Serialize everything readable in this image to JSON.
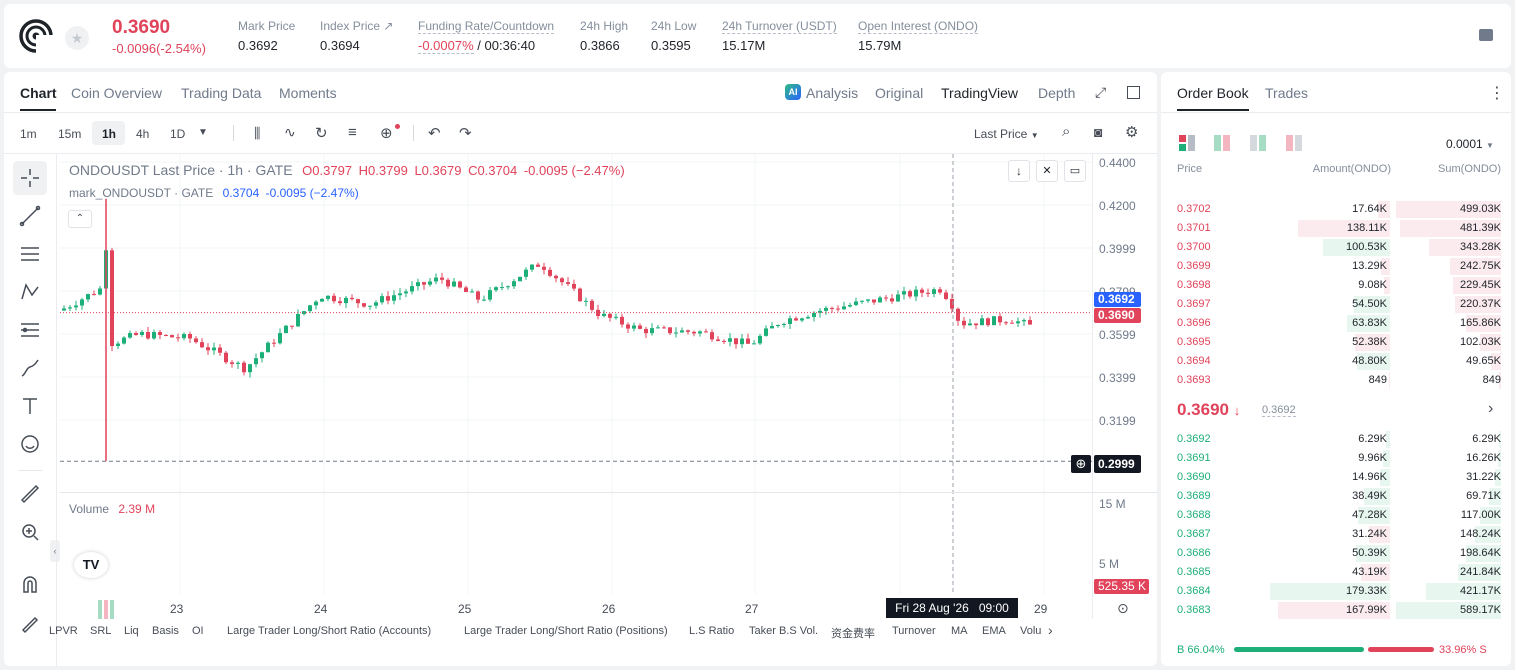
{
  "header": {
    "price": "0.3690",
    "change": "-0.0096(-2.54%)",
    "stats": [
      {
        "label": "Mark Price",
        "value": "0.3692"
      },
      {
        "label": "Index Price ↗",
        "value": "0.3694"
      },
      {
        "label": "Funding Rate/Countdown",
        "value_rate": "-0.0007%",
        "value_cd": "/ 00:36:40"
      },
      {
        "label": "24h High",
        "value": "0.3866"
      },
      {
        "label": "24h Low",
        "value": "0.3595"
      },
      {
        "label": "24h Turnover (USDT)",
        "value": "15.17M"
      },
      {
        "label": "Open Interest (ONDO)",
        "value": "15.79M"
      }
    ]
  },
  "chart_tabs": [
    "Chart",
    "Coin Overview",
    "Trading Data",
    "Moments"
  ],
  "view_tabs": [
    "Analysis",
    "Original",
    "TradingView",
    "Depth"
  ],
  "intervals": [
    "1m",
    "15m",
    "1h",
    "4h",
    "1D"
  ],
  "price_type": "Last Price",
  "legend": {
    "line1": "ONDOUSDT Last Price · 1h · GATE",
    "o": "O0.3797",
    "h": "H0.3799",
    "l": "L0.3679",
    "c": "C0.3704",
    "chg": "-0.0095 (−2.47%)",
    "line2": "mark_ONDOUSDT · GATE",
    "m_val": "0.3704",
    "m_chg": "-0.0095 (−2.47%)"
  },
  "price_axis": [
    "0.4400",
    "0.4200",
    "0.3999",
    "0.3799",
    "0.3599",
    "0.3399",
    "0.3199"
  ],
  "axis_tags": {
    "mark": "0.3692",
    "last": "0.3690",
    "cross": "0.2999",
    "vol": "525.35 K"
  },
  "volume": {
    "label": "Volume",
    "value": "2.39 M",
    "axis": [
      "15 M",
      "5 M"
    ]
  },
  "x_labels": [
    "23",
    "24",
    "25",
    "26",
    "27",
    "29"
  ],
  "crosshair_label": "Fri 28 Aug '26   09:00",
  "indicators": [
    "LPVR",
    "SRL",
    "Liq",
    "Basis",
    "OI",
    "Large Trader Long/Short Ratio (Accounts)",
    "Large Trader Long/Short Ratio (Positions)",
    "L.S Ratio",
    "Taker B.S Vol.",
    "资金费率",
    "Turnover",
    "MA",
    "EMA",
    "Volu"
  ],
  "orderbook": {
    "tabs": [
      "Order Book",
      "Trades"
    ],
    "precision": "0.0001",
    "cols": [
      "Price",
      "Amount(ONDO)",
      "Sum(ONDO)"
    ],
    "asks": [
      [
        "0.3702",
        "17.64K",
        "499.03K",
        0
      ],
      [
        "0.3701",
        "138.11K",
        "481.39K",
        0
      ],
      [
        "0.3700",
        "100.53K",
        "343.28K",
        1
      ],
      [
        "0.3699",
        "13.29K",
        "242.75K",
        0
      ],
      [
        "0.3698",
        "9.08K",
        "229.45K",
        0
      ],
      [
        "0.3697",
        "54.50K",
        "220.37K",
        1
      ],
      [
        "0.3696",
        "63.83K",
        "165.86K",
        1
      ],
      [
        "0.3695",
        "52.38K",
        "102.03K",
        0
      ],
      [
        "0.3694",
        "48.80K",
        "49.65K",
        1
      ],
      [
        "0.3693",
        "849",
        "849",
        0
      ]
    ],
    "mid": "0.3690",
    "mid_mark": "0.3692",
    "bids": [
      [
        "0.3692",
        "6.29K",
        "6.29K",
        1
      ],
      [
        "0.3691",
        "9.96K",
        "16.26K",
        1
      ],
      [
        "0.3690",
        "14.96K",
        "31.22K",
        1
      ],
      [
        "0.3689",
        "38.49K",
        "69.71K",
        1
      ],
      [
        "0.3688",
        "47.28K",
        "117.00K",
        1
      ],
      [
        "0.3687",
        "31.24K",
        "148.24K",
        0
      ],
      [
        "0.3686",
        "50.39K",
        "198.64K",
        1
      ],
      [
        "0.3685",
        "43.19K",
        "241.84K",
        0
      ],
      [
        "0.3684",
        "179.33K",
        "421.17K",
        1
      ],
      [
        "0.3683",
        "167.99K",
        "589.17K",
        0
      ]
    ],
    "buy_pct": "B 66.04%",
    "sell_pct": "33.96% S",
    "buy_ratio": 0.6604
  },
  "colors": {
    "up": "#1daf78",
    "down": "#e0435a",
    "accent": "#2962ff"
  }
}
